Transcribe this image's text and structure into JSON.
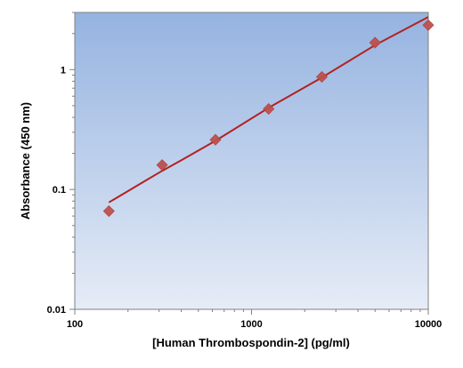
{
  "chart_data": {
    "type": "scatter",
    "xlabel": "[Human Thrombospondin-2] (pg/ml)",
    "ylabel": "Absorbance (450 nm)",
    "x_scale": "log",
    "y_scale": "log",
    "xlim": [
      100,
      10000
    ],
    "ylim": [
      0.01,
      3
    ],
    "x_ticks": [
      "100",
      "1000",
      "10000"
    ],
    "y_ticks": [
      "0.01",
      "0.1",
      "1"
    ],
    "grid": false,
    "legend": "none",
    "series": [
      {
        "type": "scatter",
        "marker": "diamond",
        "color": "#c0504d",
        "x": [
          156,
          312,
          625,
          1250,
          2500,
          5000,
          10000
        ],
        "y": [
          0.066,
          0.16,
          0.26,
          0.47,
          0.87,
          1.68,
          2.35
        ]
      },
      {
        "type": "line",
        "color": "#b22222",
        "x": [
          156,
          250,
          312,
          400,
          625,
          1250,
          2500,
          5000,
          10000
        ],
        "y": [
          0.078,
          0.118,
          0.143,
          0.175,
          0.255,
          0.48,
          0.86,
          1.6,
          2.75
        ]
      }
    ],
    "plot_background": {
      "gradient_top": "#95b3e0",
      "gradient_bottom": "#e6ecf7"
    }
  }
}
